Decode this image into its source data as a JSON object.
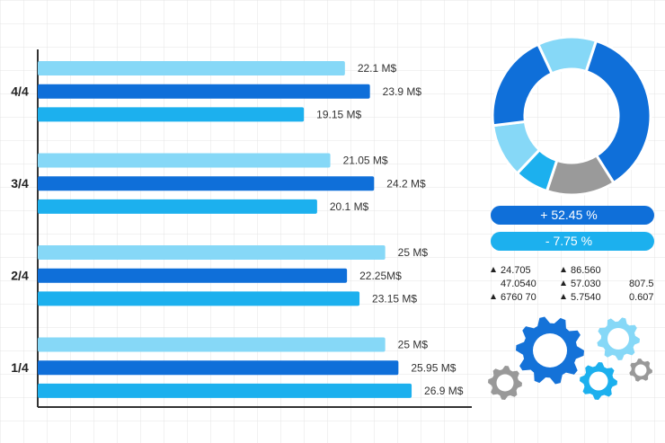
{
  "chart_data": [
    {
      "type": "bar",
      "orientation": "horizontal",
      "categories": [
        "4/4",
        "3/4",
        "2/4",
        "1/4"
      ],
      "series": [
        {
          "color": "#86d8f7",
          "values": [
            22.1,
            21.05,
            25,
            25
          ],
          "value_labels": [
            "22.1 M$",
            "21.05 M$",
            "25 M$",
            "25 M$"
          ]
        },
        {
          "color": "#0f6fd9",
          "values": [
            23.9,
            24.2,
            22.25,
            25.95
          ],
          "value_labels": [
            "23.9 M$",
            "24.2 M$",
            "22.25M$",
            "25.95 M$"
          ]
        },
        {
          "color": "#1cb0ee",
          "values": [
            19.15,
            20.1,
            23.15,
            26.9
          ],
          "value_labels": [
            "19.15 M$",
            "20.1 M$",
            "23.15 M$",
            "26.9 M$"
          ]
        }
      ],
      "xlim": [
        0,
        30
      ]
    },
    {
      "type": "pie",
      "donut": true,
      "values": [
        12,
        36,
        14,
        7,
        11,
        20
      ],
      "colors": [
        "#86d8f7",
        "#0f6fd9",
        "#9a9a9a",
        "#1cb0ee",
        "#86d8f7",
        "#0f6fd9"
      ]
    }
  ],
  "indicators": [
    {
      "text": "+ 52.45 %",
      "color": "#0f6fd9"
    },
    {
      "text": "- 7.75 %",
      "color": "#1cb0ee"
    }
  ],
  "stats": [
    [
      {
        "text": "24.705",
        "up": true
      },
      {
        "text": "47.0540",
        "up": false
      },
      {
        "text": "6760 70",
        "up": true
      }
    ],
    [
      {
        "text": "86.560",
        "up": true
      },
      {
        "text": "57.030",
        "up": true
      },
      {
        "text": "5.7540",
        "up": true
      }
    ],
    [
      {
        "text": "",
        "up": false
      },
      {
        "text": "807.5",
        "up": false
      },
      {
        "text": "0.607",
        "up": false
      }
    ]
  ]
}
